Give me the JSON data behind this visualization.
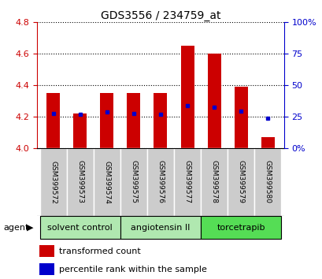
{
  "title": "GDS3556 / 234759_at",
  "samples": [
    "GSM399572",
    "GSM399573",
    "GSM399574",
    "GSM399575",
    "GSM399576",
    "GSM399577",
    "GSM399578",
    "GSM399579",
    "GSM399580"
  ],
  "bar_tops": [
    4.35,
    4.22,
    4.35,
    4.35,
    4.35,
    4.65,
    4.6,
    4.39,
    4.07
  ],
  "bar_bottom": 4.0,
  "blue_dot_values": [
    4.22,
    4.215,
    4.23,
    4.22,
    4.215,
    4.27,
    4.26,
    4.235,
    4.19
  ],
  "ylim_left": [
    4.0,
    4.8
  ],
  "yticks_left": [
    4.0,
    4.2,
    4.4,
    4.6,
    4.8
  ],
  "yticks_right": [
    0,
    25,
    50,
    75,
    100
  ],
  "ytick_labels_right": [
    "0%",
    "25",
    "50",
    "75",
    "100%"
  ],
  "bar_color": "#cc0000",
  "dot_color": "#0000cc",
  "groups": [
    {
      "label": "solvent control",
      "start": 0,
      "end": 2,
      "color": "#b0e8b0"
    },
    {
      "label": "angiotensin II",
      "start": 3,
      "end": 5,
      "color": "#b0e8b0"
    },
    {
      "label": "torcetrapib",
      "start": 6,
      "end": 8,
      "color": "#55dd55"
    }
  ],
  "agent_label": "agent",
  "sample_box_color": "#cccccc",
  "legend_red_label": "transformed count",
  "legend_blue_label": "percentile rank within the sample"
}
